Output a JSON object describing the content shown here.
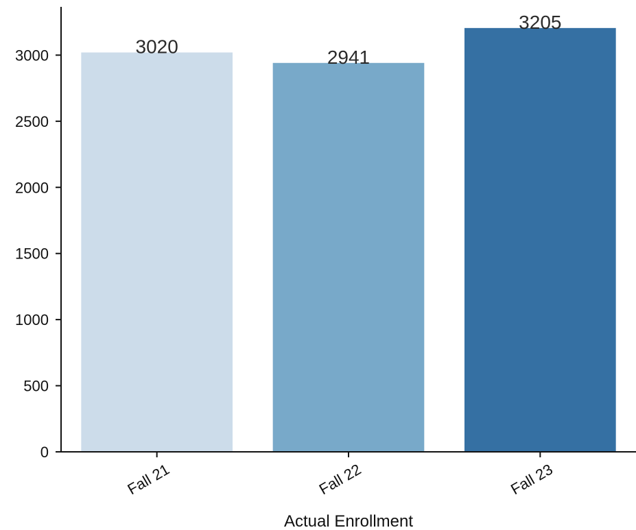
{
  "chart_data": {
    "type": "bar",
    "title": "",
    "xlabel": "Actual Enrollment",
    "ylabel": "",
    "categories": [
      "Fall 21",
      "Fall 22",
      "Fall 23"
    ],
    "values": [
      3020,
      2941,
      3205
    ],
    "data_labels": [
      "3020",
      "2941",
      "3205"
    ],
    "colors": [
      "#ccdcea",
      "#78a9c9",
      "#3570a3"
    ],
    "yticks": [
      0,
      500,
      1000,
      1500,
      2000,
      2500,
      3000
    ],
    "ylim": [
      0,
      3365
    ],
    "grid": false,
    "legend": "none"
  }
}
